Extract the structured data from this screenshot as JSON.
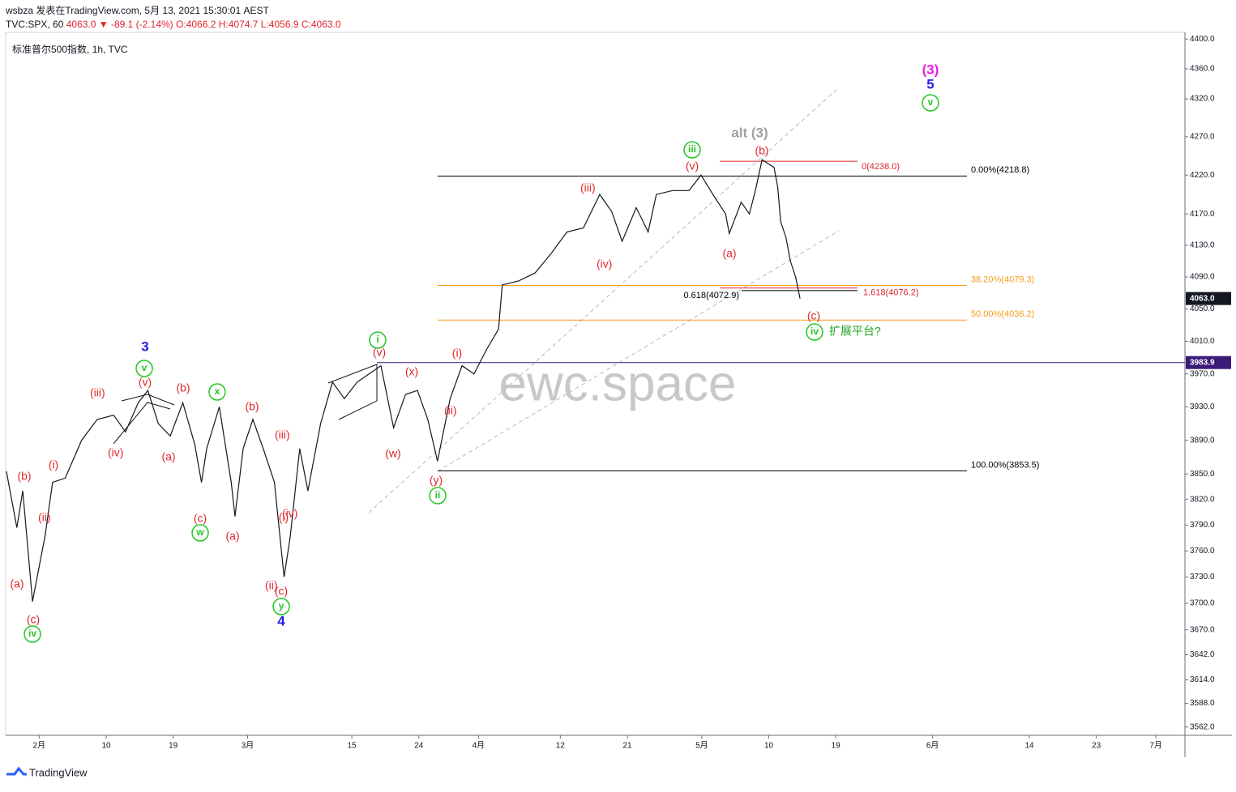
{
  "header": {
    "publisher": "wsbza 发表在TradingView.com, 5月 13, 2021 15:30:01 AEST",
    "symbol": "TVC:SPX, 60",
    "last": "4063.0",
    "change": "▼ -89.1 (-2.14%)",
    "open": "O:4066.2",
    "high": "H:4074.7",
    "low": "L:4056.9",
    "close": "C:4063.0"
  },
  "chart_data": {
    "type": "line",
    "title": "标准普尔500指数, 1h, TVC",
    "color": "#131722",
    "log_scale": true,
    "watermark": "ewc.space",
    "x": [
      -4.4,
      -3.0,
      -2.2,
      -0.9,
      0.8,
      1.8,
      3.5,
      5.7,
      7.8,
      10.0,
      11.6,
      13.3,
      14.6,
      16.0,
      17.6,
      19.3,
      20.9,
      21.8,
      22.5,
      24.2,
      25.8,
      26.3,
      27.4,
      28.7,
      30.1,
      31.6,
      32.9,
      33.7,
      35.0,
      36.1,
      37.8,
      39.4,
      41.0,
      42.7,
      44.3,
      45.9,
      47.6,
      49.2,
      50.8,
      52.2,
      53.5,
      55.2,
      56.8,
      58.4,
      60.1,
      61.7,
      62.2,
      64.4,
      66.6,
      68.8,
      70.9,
      73.1,
      75.3,
      76.9,
      78.3,
      80.2,
      81.8,
      82.9,
      85.1,
      87.3,
      88.9,
      90.5,
      92.2,
      92.7,
      94.3,
      95.4,
      96.2,
      97.1,
      98.7,
      99.2,
      99.6,
      100.3,
      100.9,
      101.6,
      102.2
    ],
    "values": [
      3853,
      3787,
      3830,
      3702,
      3778,
      3840,
      3845,
      3890,
      3915,
      3920,
      3900,
      3935,
      3950,
      3910,
      3895,
      3935,
      3885,
      3840,
      3880,
      3930,
      3840,
      3800,
      3880,
      3915,
      3880,
      3840,
      3730,
      3775,
      3880,
      3830,
      3910,
      3960,
      3940,
      3960,
      3970,
      3980,
      3905,
      3945,
      3950,
      3915,
      3865,
      3940,
      3980,
      3970,
      4000,
      4025,
      4080,
      4085,
      4095,
      4120,
      4147,
      4152,
      4195,
      4173,
      4135,
      4178,
      4147,
      4195,
      4200,
      4200,
      4220,
      4195,
      4170,
      4145,
      4185,
      4170,
      4200,
      4240,
      4230,
      4205,
      4160,
      4140,
      4110,
      4090,
      4063
    ],
    "xlim": [
      -4.5,
      153.9
    ],
    "xticks": [
      {
        "value": 0,
        "label": "2月"
      },
      {
        "value": 9,
        "label": "10"
      },
      {
        "value": 18,
        "label": "19"
      },
      {
        "value": 28,
        "label": "3月"
      },
      {
        "value": 42,
        "label": "15"
      },
      {
        "value": 51,
        "label": "24"
      },
      {
        "value": 59,
        "label": "4月"
      },
      {
        "value": 70,
        "label": "12"
      },
      {
        "value": 79,
        "label": "21"
      },
      {
        "value": 89,
        "label": "5月"
      },
      {
        "value": 98,
        "label": "10"
      },
      {
        "value": 107,
        "label": "19"
      },
      {
        "value": 120,
        "label": "6月"
      },
      {
        "value": 133,
        "label": "14"
      },
      {
        "value": 142,
        "label": "23"
      },
      {
        "value": 150,
        "label": "7月"
      }
    ],
    "ylim": [
      3553,
      4409
    ],
    "yticks": [
      {
        "value": 4400,
        "label": "4400.0"
      },
      {
        "value": 4360,
        "label": "4360.0"
      },
      {
        "value": 4320,
        "label": "4320.0"
      },
      {
        "value": 4270,
        "label": "4270.0"
      },
      {
        "value": 4220,
        "label": "4220.0"
      },
      {
        "value": 4170,
        "label": "4170.0"
      },
      {
        "value": 4130,
        "label": "4130.0"
      },
      {
        "value": 4090,
        "label": "4090.0"
      },
      {
        "value": 4050,
        "label": "4050.0"
      },
      {
        "value": 4010,
        "label": "4010.0"
      },
      {
        "value": 3970,
        "label": "3970.0"
      },
      {
        "value": 3930,
        "label": "3930.0"
      },
      {
        "value": 3890,
        "label": "3890.0"
      },
      {
        "value": 3850,
        "label": "3850.0"
      },
      {
        "value": 3820,
        "label": "3820.0"
      },
      {
        "value": 3790,
        "label": "3790.0"
      },
      {
        "value": 3760,
        "label": "3760.0"
      },
      {
        "value": 3730,
        "label": "3730.0"
      },
      {
        "value": 3700,
        "label": "3700.0"
      },
      {
        "value": 3670,
        "label": "3670.0"
      },
      {
        "value": 3642,
        "label": "3642.0"
      },
      {
        "value": 3614,
        "label": "3614.0"
      },
      {
        "value": 3588,
        "label": "3588.0"
      },
      {
        "value": 3562,
        "label": "3562.0"
      }
    ],
    "price_lines": [
      {
        "value": 4063.0,
        "label": "4063.0",
        "color": "#131722"
      },
      {
        "value": 3983.9,
        "label": "3983.9",
        "color": "#3c1a78"
      }
    ],
    "levels": [
      {
        "value": 4218.8,
        "label": "0.00%(4218.8)",
        "color": "#000000"
      },
      {
        "value": 4079.3,
        "label": "38.20%(4079.3)",
        "color": "#f59c1a"
      },
      {
        "value": 4036.2,
        "label": "50.00%(4036.2)",
        "color": "#f59c1a"
      },
      {
        "value": 3853.5,
        "label": "100.00%(3853.5)",
        "color": "#000000"
      },
      {
        "value": 4238.0,
        "label": "0(4238.0)",
        "color": "#e0262b"
      },
      {
        "value": 4076.2,
        "label": "1.618(4076.2)",
        "color": "#e0262b"
      },
      {
        "value": 4072.9,
        "label": "0.618(4072.9)",
        "color": "#000000"
      }
    ],
    "annotations": [
      {
        "text": "iv",
        "color": "#22c722",
        "circle": true
      },
      {
        "text": "w",
        "color": "#22c722",
        "circle": true
      },
      {
        "text": "v",
        "color": "#22c722",
        "circle": true
      },
      {
        "text": "x",
        "color": "#22c722",
        "circle": true
      },
      {
        "text": "y",
        "color": "#22c722",
        "circle": true
      },
      {
        "text": "i",
        "color": "#22c722",
        "circle": true
      },
      {
        "text": "ii",
        "color": "#22c722",
        "circle": true
      },
      {
        "text": "iii",
        "color": "#22c722",
        "circle": true
      },
      {
        "text": "v",
        "color": "#22c722",
        "circle": true
      },
      {
        "text": "iv",
        "color": "#22c722",
        "circle": true
      },
      {
        "text": "3",
        "color": "#1e1ee6"
      },
      {
        "text": "4",
        "color": "#1e1ee6"
      },
      {
        "text": "5",
        "color": "#1e1ee6"
      },
      {
        "text": "(3)",
        "color": "#e91ee0"
      },
      {
        "text": "alt (3)",
        "color": "#a0a0a0"
      },
      {
        "text": "扩展平台?",
        "color": "#22a022"
      },
      {
        "text": "(a)",
        "color": "#e0262b"
      },
      {
        "text": "(c)",
        "color": "#e0262b"
      },
      {
        "text": "(b)",
        "color": "#e0262b"
      },
      {
        "text": "(i)",
        "color": "#e0262b"
      },
      {
        "text": "(ii)",
        "color": "#e0262b"
      },
      {
        "text": "(iii)",
        "color": "#e0262b"
      },
      {
        "text": "(iv)",
        "color": "#e0262b"
      },
      {
        "text": "(v)",
        "color": "#e0262b"
      },
      {
        "text": "(b)",
        "color": "#e0262b"
      },
      {
        "text": "(a)",
        "color": "#e0262b"
      },
      {
        "text": "(c)",
        "color": "#e0262b"
      },
      {
        "text": "(a)",
        "color": "#e0262b"
      },
      {
        "text": "(b)",
        "color": "#e0262b"
      },
      {
        "text": "(iii)",
        "color": "#e0262b"
      },
      {
        "text": "(i)",
        "color": "#e0262b"
      },
      {
        "text": "(iv)",
        "color": "#e0262b"
      },
      {
        "text": "(ii)",
        "color": "#e0262b"
      },
      {
        "text": "(c)",
        "color": "#e0262b"
      },
      {
        "text": "(v)",
        "color": "#e0262b"
      },
      {
        "text": "(x)",
        "color": "#e0262b"
      },
      {
        "text": "(w)",
        "color": "#e0262b"
      },
      {
        "text": "(i)",
        "color": "#e0262b"
      },
      {
        "text": "(ii)",
        "color": "#e0262b"
      },
      {
        "text": "(y)",
        "color": "#e0262b"
      },
      {
        "text": "(iii)",
        "color": "#e0262b"
      },
      {
        "text": "(iv)",
        "color": "#e0262b"
      },
      {
        "text": "(v)",
        "color": "#e0262b"
      },
      {
        "text": "(b)",
        "color": "#e0262b"
      },
      {
        "text": "(a)",
        "color": "#e0262b"
      },
      {
        "text": "(c)",
        "color": "#e0262b"
      }
    ]
  },
  "footer": {
    "brand": "TradingView"
  }
}
